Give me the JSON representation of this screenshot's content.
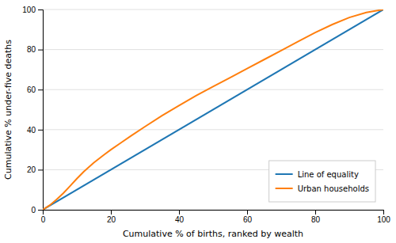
{
  "chart_data": {
    "type": "line",
    "xlabel": "Cumulative % of births, ranked by wealth",
    "ylabel": "Cumulative % under-five deaths",
    "xlim": [
      0,
      100
    ],
    "ylim": [
      0,
      100
    ],
    "xticks": [
      0,
      20,
      40,
      60,
      80,
      100
    ],
    "yticks": [
      0,
      20,
      40,
      60,
      80,
      100
    ],
    "grid": "y",
    "legend": "lower right",
    "series": [
      {
        "name": "Line of equality",
        "x": [
          0,
          100
        ],
        "values": [
          0,
          100
        ]
      },
      {
        "name": "Urban households",
        "x": [
          0,
          2,
          4,
          6,
          8,
          10,
          12,
          15,
          18,
          20,
          23,
          26,
          30,
          35,
          40,
          45,
          50,
          55,
          60,
          65,
          70,
          75,
          80,
          85,
          90,
          95,
          100
        ],
        "values": [
          0,
          2.2,
          5.0,
          8.2,
          11.8,
          15.5,
          19.0,
          23.5,
          27.5,
          30.0,
          33.5,
          37.0,
          41.5,
          47.0,
          52.0,
          57.0,
          61.5,
          66.0,
          70.5,
          75.0,
          79.5,
          84.0,
          88.5,
          92.5,
          96.0,
          98.5,
          100
        ]
      }
    ]
  }
}
